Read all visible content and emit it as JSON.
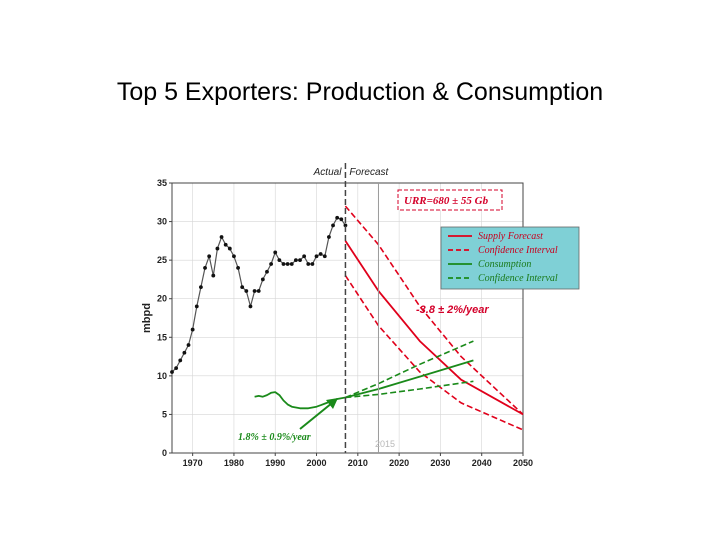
{
  "slide": {
    "title": "Top 5 Exporters: Production & Consumption"
  },
  "chart_data": {
    "type": "line",
    "title": "",
    "xlabel": "",
    "ylabel": "mbpd",
    "xlim": [
      1965,
      2050
    ],
    "ylim": [
      0,
      35
    ],
    "xticks": [
      1970,
      1980,
      1990,
      2000,
      2010,
      2020,
      2030,
      2040,
      2050
    ],
    "yticks": [
      0,
      5,
      10,
      15,
      20,
      25,
      30,
      35
    ],
    "actual_label": "Actual",
    "forecast_label": "Forecast",
    "divider_year": 2007,
    "marker_year": 2015,
    "urr_label": "URR=680 ± 55 Gb",
    "decline_label": "-3.8 ± 2%/year",
    "growth_label": "1.8% ± 0.9%/year",
    "year_annotation": "2015",
    "legend": [
      {
        "label": "Supply Forecast",
        "color": "#e0001b",
        "style": "solid"
      },
      {
        "label": "Confidence Interval",
        "color": "#e0001b",
        "style": "dashed"
      },
      {
        "label": "Consumption",
        "color": "#1a8a1a",
        "style": "solid"
      },
      {
        "label": "Confidence Interval",
        "color": "#1a8a1a",
        "style": "dashed"
      }
    ],
    "colors": {
      "legend_bg": "#7fd0d6",
      "production": "#555555",
      "supply": "#e0001b",
      "consumption": "#1a8a1a"
    },
    "series": [
      {
        "name": "Production (actual)",
        "x": [
          1965,
          1966,
          1967,
          1968,
          1969,
          1970,
          1971,
          1972,
          1973,
          1974,
          1975,
          1976,
          1977,
          1978,
          1979,
          1980,
          1981,
          1982,
          1983,
          1984,
          1985,
          1986,
          1987,
          1988,
          1989,
          1990,
          1991,
          1992,
          1993,
          1994,
          1995,
          1996,
          1997,
          1998,
          1999,
          2000,
          2001,
          2002,
          2003,
          2004,
          2005,
          2006,
          2007
        ],
        "values": [
          10.5,
          11.0,
          12.0,
          13.0,
          14.0,
          16.0,
          19.0,
          21.5,
          24.0,
          25.5,
          23.0,
          26.5,
          28.0,
          27.0,
          26.5,
          25.5,
          24.0,
          21.5,
          21.0,
          19.0,
          21.0,
          21.0,
          22.5,
          23.5,
          24.5,
          26.0,
          25.0,
          24.5,
          24.5,
          24.5,
          25.0,
          25.0,
          25.5,
          24.5,
          24.5,
          25.5,
          25.8,
          25.5,
          28.0,
          29.5,
          30.5,
          30.3,
          29.5
        ]
      },
      {
        "name": "Supply Forecast",
        "x": [
          2007,
          2015,
          2025,
          2035,
          2050
        ],
        "values": [
          27.5,
          21.0,
          14.5,
          9.5,
          5.0
        ]
      },
      {
        "name": "Supply Forecast - Upper CI",
        "x": [
          2007,
          2015,
          2025,
          2035,
          2050
        ],
        "values": [
          32.0,
          27.0,
          19.0,
          12.5,
          5.0
        ]
      },
      {
        "name": "Supply Forecast - Lower CI",
        "x": [
          2007,
          2015,
          2025,
          2035,
          2050
        ],
        "values": [
          23.0,
          16.5,
          10.5,
          6.5,
          3.0
        ]
      },
      {
        "name": "Consumption (actual)",
        "x": [
          1985,
          1986,
          1987,
          1988,
          1989,
          1990,
          1991,
          1992,
          1993,
          1994,
          1995,
          1996,
          1997,
          1998,
          1999,
          2000,
          2001,
          2002,
          2003,
          2004,
          2005,
          2006,
          2007
        ],
        "values": [
          7.3,
          7.4,
          7.3,
          7.5,
          7.8,
          7.9,
          7.5,
          6.8,
          6.3,
          6.0,
          5.9,
          5.8,
          5.8,
          5.8,
          5.9,
          6.0,
          6.2,
          6.4,
          6.6,
          6.8,
          7.0,
          7.1,
          7.2
        ]
      },
      {
        "name": "Consumption Forecast",
        "x": [
          2007,
          2015,
          2025,
          2038
        ],
        "values": [
          7.2,
          8.3,
          9.9,
          12.0
        ]
      },
      {
        "name": "Consumption - Upper CI",
        "x": [
          2007,
          2015,
          2025,
          2038
        ],
        "values": [
          7.2,
          9.0,
          11.5,
          14.5
        ]
      },
      {
        "name": "Consumption - Lower CI",
        "x": [
          2007,
          2015,
          2025,
          2038
        ],
        "values": [
          7.2,
          7.6,
          8.3,
          9.3
        ]
      }
    ]
  }
}
